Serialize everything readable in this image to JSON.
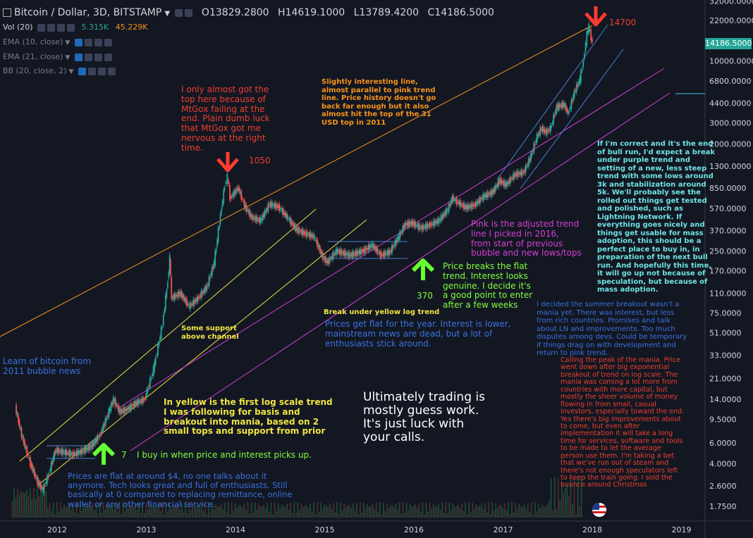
{
  "header": {
    "symbol": "Bitcoin / Dollar, 3D, BITSTAMP",
    "o_label": "O",
    "o": "13829.2800",
    "h_label": "H",
    "h": "14619.1000",
    "l_label": "L",
    "l": "13789.4200",
    "c_label": "C",
    "c": "14186.5000"
  },
  "indicators": [
    {
      "label": "Vol (20)",
      "v1": "5.315K",
      "v2": "45.229K"
    },
    {
      "label": "EMA (10, close)"
    },
    {
      "label": "EMA (21, close)"
    },
    {
      "label": "BB (20, close, 2)"
    }
  ],
  "price_badge": "14186.5000",
  "colors": {
    "background": "#131722",
    "up": "#26a69a",
    "down": "#ef5350",
    "orange_line": "#f7931a",
    "yellow_line": "#f0e442",
    "pink_line": "#d43fd4",
    "blue_line": "#4a7fd4",
    "arrow_red": "#ff3b30",
    "arrow_green": "#66ff33"
  },
  "annotations": {
    "learn": "Learn of bitcoin from\n2011 bubble news",
    "flat4": "Prices are flat at around $4, no one talks about it\nanymore. Tech looks great and full of enthusiasts. Still\nbasically at 0 compared to replacing remittance, online\nwallet or any other financial service.",
    "buy": "I buy in when price and interest picks up.",
    "seven": "7",
    "yellow_trend": "In yellow is the first log scale trend\nI was following for basis and\nbreakout into mania, based on 2\nsmall tops and support from prior",
    "support": "Some support\nabove channel",
    "mtgox": "I only almost got the\ntop here because of\nMtGox failing at the\nend. Plain dumb luck\nthat MtGox got me\nnervous at the right\ntime.",
    "p1050": "1050",
    "orange_note": "Slightly interesting line,\nalmost parallel to pink trend\nline. Price history doesn't go\nback far enough but it also\nalmost hit the top of the 31\nUSD top in 2011",
    "break_yellow": "Break under yellow log trend",
    "flat_year": "Prices get flat for the year. Interest is lower,\nmainstream news are dead, but a lot of\nenthusiasts stick around.",
    "p370": "370",
    "breaks_flat": "Price breaks the flat\ntrend. Interest looks\ngenuine. I decide it's\na good point to enter\nafter a few weeks",
    "pink_note": "Pink is the adjusted trend\nline I picked in 2016,\nfrom start of previous\nbubble and new lows/tops",
    "summer": "I decided the summer breakout wasn't a\nmania yet. There was interest, but less\nfrom rich countries. Promises and talk\nabout LN and improvements. Too much\ndisputes among devs. Could be temporary\nif things drag on with development and\nreturn to pink trend.",
    "guess": "Ultimately trading is\nmostly guess work.\nIt's just luck with\nyour calls.",
    "p14700": "14700",
    "correct": "If I'm correct and it's the end\nof bull run, I'd expect a break\nunder purple trend and\nsetting of a new, less steep\ntrend with some lows around\n3k and stabilization around\n5k. We'll probably see the\nrolled out things get tested\nand polished, such as\nLightning Network. If\neverything goes nicely and\nthings get usable for mass\nadoption, this should be a\nperfect place to buy in, in\npreparation of the next bull\nrun. And hopefully this time,\nit will go up not because of\nspeculation, but because of\nmass adoption.",
    "peak": "Calling the peak of the mania. Price\nwent down after big exponential\nbreakout of trend on log scale. The\nmania was coming a lot more from\ncountries with more capital, but\nmostly the sheer volume of money\nflowing in from small, casual\ninvestors, especially toward the end.\nYes there's big improvements about\nto come, but even after\nimplementation it will take a long\ntime for services, software and tools\nto be made to let the average\nperson use them. I'm taking a bet\nthat we've run out of steam and\nthere's not enough speculators left\nto keep the train going. I sold the\nbounce around Christmas"
  },
  "chart_data": {
    "type": "line",
    "title": "Bitcoin / Dollar, 3D, BITSTAMP",
    "y_scale": "log",
    "y_ticks": [
      "32000.0000",
      "22000.0000",
      "10000.0000",
      "6800.0000",
      "4400.0000",
      "3000.0000",
      "2000.0000",
      "1300.0000",
      "850.0000",
      "570.0000",
      "370.0000",
      "250.0000",
      "170.0000",
      "110.0000",
      "75.0000",
      "51.0000",
      "33.0000",
      "21.0000",
      "14.0000",
      "9.5000",
      "6.0000",
      "4.0000",
      "2.6000",
      "1.7500"
    ],
    "x_ticks": [
      "2012",
      "2013",
      "2014",
      "2015",
      "2016",
      "2017",
      "2018",
      "2019"
    ],
    "series": [
      {
        "points": [
          [
            2011.55,
            12
          ],
          [
            2011.62,
            7
          ],
          [
            2011.72,
            4
          ],
          [
            2011.8,
            2.8
          ],
          [
            2011.86,
            2.4
          ],
          [
            2011.92,
            3.2
          ],
          [
            2012.0,
            5.2
          ],
          [
            2012.1,
            5.0
          ],
          [
            2012.2,
            4.8
          ],
          [
            2012.3,
            5.1
          ],
          [
            2012.4,
            5.6
          ],
          [
            2012.5,
            7.0
          ],
          [
            2012.6,
            11
          ],
          [
            2012.65,
            14
          ],
          [
            2012.72,
            11
          ],
          [
            2012.8,
            11.5
          ],
          [
            2012.9,
            13
          ],
          [
            2013.0,
            14
          ],
          [
            2013.1,
            25
          ],
          [
            2013.2,
            60
          ],
          [
            2013.26,
            140
          ],
          [
            2013.28,
            220
          ],
          [
            2013.3,
            100
          ],
          [
            2013.4,
            110
          ],
          [
            2013.5,
            85
          ],
          [
            2013.6,
            100
          ],
          [
            2013.7,
            125
          ],
          [
            2013.78,
            200
          ],
          [
            2013.85,
            500
          ],
          [
            2013.9,
            900
          ],
          [
            2013.93,
            1050
          ],
          [
            2013.96,
            700
          ],
          [
            2014.05,
            850
          ],
          [
            2014.12,
            600
          ],
          [
            2014.2,
            480
          ],
          [
            2014.3,
            450
          ],
          [
            2014.4,
            620
          ],
          [
            2014.5,
            590
          ],
          [
            2014.6,
            480
          ],
          [
            2014.7,
            380
          ],
          [
            2014.8,
            350
          ],
          [
            2014.9,
            330
          ],
          [
            2015.0,
            220
          ],
          [
            2015.05,
            200
          ],
          [
            2015.15,
            250
          ],
          [
            2015.3,
            230
          ],
          [
            2015.45,
            250
          ],
          [
            2015.55,
            280
          ],
          [
            2015.65,
            230
          ],
          [
            2015.75,
            245
          ],
          [
            2015.85,
            330
          ],
          [
            2015.92,
            420
          ],
          [
            2016.0,
            430
          ],
          [
            2016.1,
            390
          ],
          [
            2016.2,
            415
          ],
          [
            2016.3,
            450
          ],
          [
            2016.4,
            560
          ],
          [
            2016.45,
            700
          ],
          [
            2016.5,
            650
          ],
          [
            2016.6,
            580
          ],
          [
            2016.7,
            610
          ],
          [
            2016.8,
            720
          ],
          [
            2016.9,
            780
          ],
          [
            2016.98,
            980
          ],
          [
            2017.05,
            900
          ],
          [
            2017.15,
            1100
          ],
          [
            2017.25,
            1150
          ],
          [
            2017.32,
            1500
          ],
          [
            2017.4,
            2300
          ],
          [
            2017.45,
            2700
          ],
          [
            2017.5,
            2500
          ],
          [
            2017.55,
            2700
          ],
          [
            2017.62,
            4100
          ],
          [
            2017.7,
            4300
          ],
          [
            2017.75,
            3600
          ],
          [
            2017.82,
            5500
          ],
          [
            2017.88,
            7000
          ],
          [
            2017.92,
            10000
          ],
          [
            2017.96,
            17000
          ],
          [
            2017.98,
            19500
          ],
          [
            2018.02,
            14186.5
          ]
        ]
      }
    ]
  }
}
